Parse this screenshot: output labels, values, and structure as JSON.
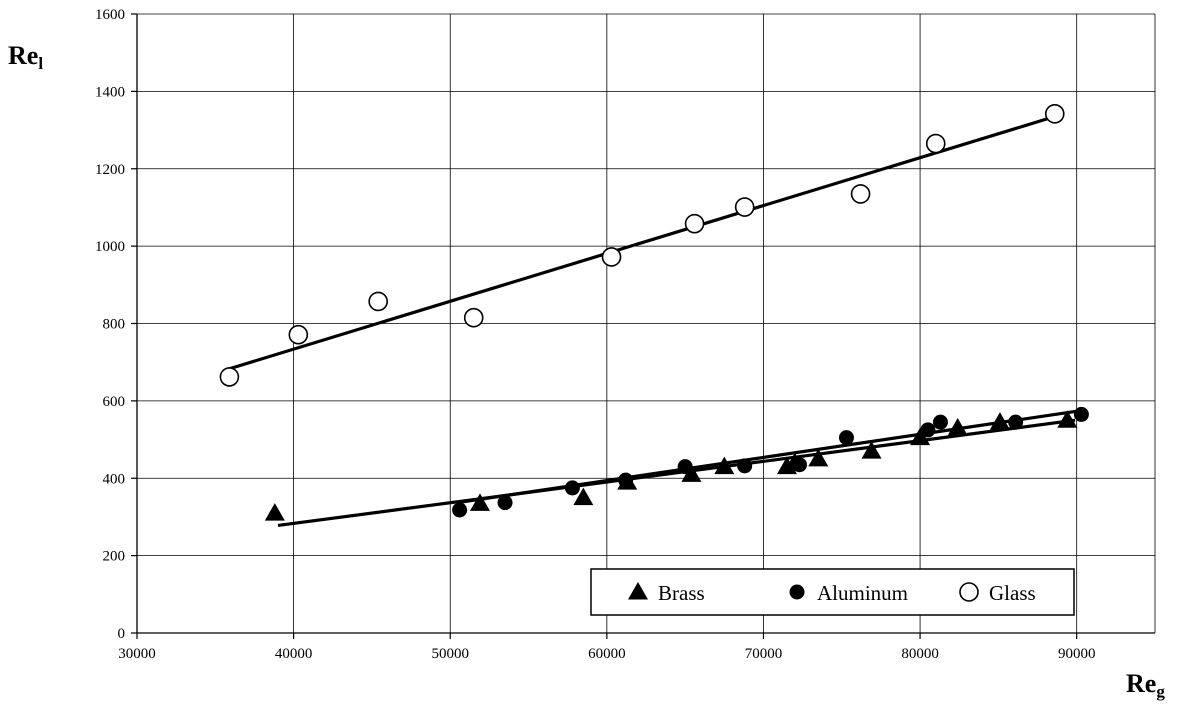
{
  "chart_data": {
    "type": "scatter",
    "title": "",
    "ylabel": {
      "main": "Re",
      "sub": "l"
    },
    "xlabel": {
      "main": "Re",
      "sub": "g"
    },
    "xlim": [
      30000,
      95000
    ],
    "ylim": [
      0,
      1600
    ],
    "xticks": [
      30000,
      40000,
      50000,
      60000,
      70000,
      80000,
      90000
    ],
    "yticks": [
      0,
      200,
      400,
      600,
      800,
      1000,
      1200,
      1400,
      1600
    ],
    "grid": true,
    "legend_position": "bottom-right",
    "series": [
      {
        "name": "Brass",
        "marker": "filled-triangle",
        "points": [
          [
            38800,
            310
          ],
          [
            51900,
            335
          ],
          [
            58500,
            350
          ],
          [
            61300,
            390
          ],
          [
            65400,
            410
          ],
          [
            67500,
            430
          ],
          [
            71500,
            430
          ],
          [
            72000,
            440
          ],
          [
            73500,
            450
          ],
          [
            76900,
            470
          ],
          [
            80000,
            505
          ],
          [
            82400,
            530
          ],
          [
            85100,
            545
          ],
          [
            89400,
            550
          ]
        ],
        "fit": [
          [
            39000,
            278
          ],
          [
            89900,
            550
          ]
        ]
      },
      {
        "name": "Aluminum",
        "marker": "filled-circle",
        "points": [
          [
            50600,
            318
          ],
          [
            53500,
            337
          ],
          [
            57800,
            375
          ],
          [
            61200,
            395
          ],
          [
            65000,
            430
          ],
          [
            68800,
            432
          ],
          [
            72300,
            435
          ],
          [
            75300,
            505
          ],
          [
            80500,
            525
          ],
          [
            81300,
            545
          ],
          [
            86100,
            545
          ],
          [
            90300,
            565
          ]
        ],
        "fit": [
          [
            50600,
            338
          ],
          [
            90300,
            575
          ]
        ]
      },
      {
        "name": "Glass",
        "marker": "open-circle",
        "points": [
          [
            35900,
            662
          ],
          [
            40300,
            771
          ],
          [
            45400,
            857
          ],
          [
            51500,
            815
          ],
          [
            60300,
            972
          ],
          [
            65600,
            1058
          ],
          [
            68800,
            1101
          ],
          [
            76200,
            1135
          ],
          [
            81000,
            1265
          ],
          [
            88600,
            1342
          ]
        ],
        "fit": [
          [
            35900,
            683
          ],
          [
            88600,
            1335
          ]
        ]
      }
    ],
    "colors": {
      "marks": "#000000",
      "grid": "#000000",
      "background": "#ffffff"
    }
  }
}
